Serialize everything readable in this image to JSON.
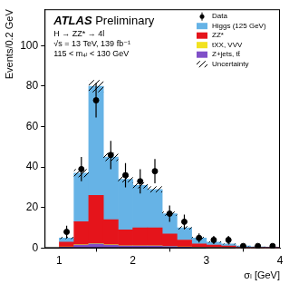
{
  "chart_data": {
    "type": "histogram",
    "annotations": [
      "ATLAS Preliminary",
      "H → ZZ* → 4l",
      "√s = 13 TeV, 139 fb⁻¹",
      "115 < m₄ₗ < 130 GeV"
    ],
    "x_label": "σₗ [GeV]",
    "y_label": "Events/0.2 GeV",
    "bins": [
      1.0,
      1.2,
      1.4,
      1.6,
      1.8,
      2.0,
      2.2,
      2.4,
      2.6,
      2.8,
      3.0,
      3.2,
      3.4,
      3.6,
      3.8,
      4.0
    ],
    "stacked": true,
    "series": [
      {
        "name": "Higgs (125 GeV)",
        "color": "#66b3e6",
        "values": [
          2,
          24,
          54,
          31,
          25,
          21,
          19,
          10,
          6,
          3,
          1.5,
          1,
          0.5,
          0.3,
          0.2
        ]
      },
      {
        "name": "ZZ*",
        "color": "#e5141b",
        "values": [
          2.4,
          11.3,
          23.7,
          12.3,
          7.8,
          8.8,
          8.8,
          6.1,
          3.4,
          1.6,
          1.25,
          0.75,
          0.38,
          0.18,
          0.14
        ]
      },
      {
        "name": "tXX, VVV",
        "color": "#f2e21f",
        "values": [
          0.1,
          0.2,
          0.3,
          0.2,
          0.2,
          0.2,
          0.2,
          0.1,
          0.1,
          0.1,
          0.05,
          0.05,
          0.02,
          0.02,
          0.01
        ]
      },
      {
        "name": "Z+jets, tt̄",
        "color": "#8050c8",
        "values": [
          0.5,
          1.5,
          2,
          1.5,
          1,
          1,
          1,
          0.8,
          0.5,
          0.3,
          0.2,
          0.2,
          0.1,
          0.1,
          0.05
        ]
      }
    ],
    "data": {
      "name": "Data",
      "color": "#000000",
      "marker": "circle",
      "values": [
        8,
        39,
        73,
        46,
        36,
        33,
        38,
        17,
        13,
        5,
        4,
        4,
        1,
        1,
        1
      ],
      "errors": [
        3,
        6,
        8.5,
        7,
        6,
        6,
        6,
        4,
        3.5,
        2.2,
        2,
        2,
        1,
        1,
        1
      ]
    },
    "uncertainty": {
      "name": "Uncertainty",
      "color": "#000000",
      "values": [
        0.5,
        2,
        3,
        2,
        1.5,
        1.5,
        1.5,
        1,
        0.8,
        0.5,
        0.3,
        0.2,
        0.1,
        0.1,
        0.05
      ]
    },
    "xlim": [
      0.8,
      4
    ],
    "xticks": [
      1,
      2,
      3,
      4
    ],
    "ylim": [
      0,
      118
    ],
    "yticks": [
      0,
      20,
      40,
      60,
      80,
      100
    ],
    "grid": false,
    "legend": "upper right"
  }
}
